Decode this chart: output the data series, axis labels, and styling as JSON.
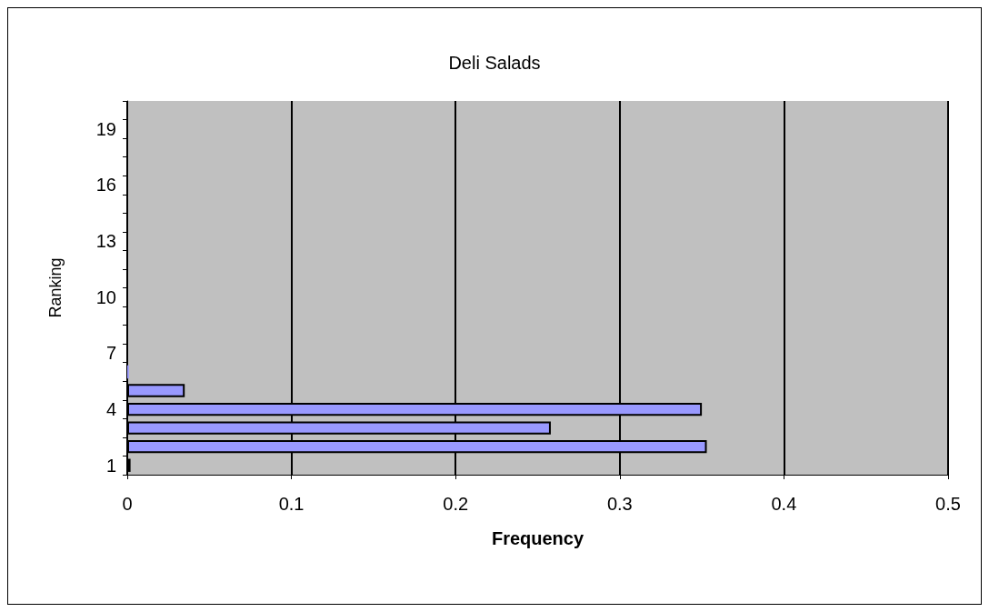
{
  "chart_data": {
    "type": "bar",
    "orientation": "horizontal",
    "title": "Deli Salads",
    "xlabel": "Frequency",
    "ylabel": "Ranking",
    "categories": [
      null,
      "19",
      null,
      null,
      "16",
      null,
      null,
      "13",
      null,
      null,
      "10",
      null,
      null,
      "7",
      null,
      null,
      "4",
      null,
      null,
      "1"
    ],
    "values": [
      0,
      0,
      0,
      0,
      0,
      0,
      0,
      0,
      0,
      0,
      0,
      0,
      0,
      0,
      0.001,
      0.035,
      0.35,
      0.258,
      0.353,
      0.002
    ],
    "color": "#9999ff",
    "xlim": [
      0,
      0.5
    ],
    "xticks": [
      0,
      0.1,
      0.2,
      0.3,
      0.4,
      0.5
    ],
    "grid": "x"
  }
}
